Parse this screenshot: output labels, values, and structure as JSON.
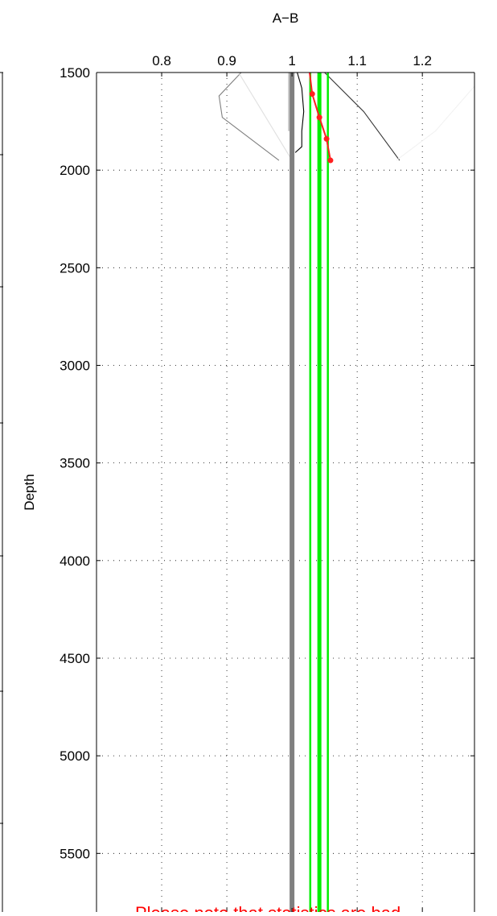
{
  "chart_data": {
    "type": "line",
    "title": "A−B",
    "ylabel": "Depth",
    "xlabel": "",
    "xlim": [
      0.7,
      1.28
    ],
    "ylim": [
      1500,
      5800
    ],
    "y_reversed": true,
    "x_ticks": [
      "0.8",
      "0.9",
      "1",
      "1.1",
      "1.2"
    ],
    "x_tick_values": [
      0.8,
      0.9,
      1.0,
      1.1,
      1.2
    ],
    "y_ticks": [
      "1500",
      "2000",
      "2500",
      "3000",
      "3500",
      "4000",
      "4500",
      "5000",
      "5500"
    ],
    "y_tick_values": [
      1500,
      2000,
      2500,
      3000,
      3500,
      4000,
      4500,
      5000,
      5500
    ],
    "grid": "dotted",
    "reference_lines": [
      {
        "x": 1.0,
        "color": "#808080"
      },
      {
        "x": 1.028,
        "color": "#00ee00"
      },
      {
        "x": 1.042,
        "color": "#00ee00"
      },
      {
        "x": 1.055,
        "color": "#00ee00"
      }
    ],
    "series": [
      {
        "color": "#ff2020",
        "markers": true,
        "x": [
          1.027,
          1.031,
          1.042,
          1.053,
          1.059
        ],
        "y": [
          1500,
          1610,
          1730,
          1840,
          1950
        ]
      },
      {
        "color": "#000000",
        "markers": false,
        "x": [
          1.008,
          1.015,
          1.018,
          1.015,
          1.015,
          1.005
        ],
        "y": [
          1500,
          1580,
          1700,
          1800,
          1880,
          1910
        ]
      },
      {
        "color": "#808080",
        "markers": false,
        "x": [
          0.922,
          0.888,
          0.893,
          0.98
        ],
        "y": [
          1500,
          1620,
          1730,
          1950
        ]
      },
      {
        "color": "#333333",
        "markers": false,
        "x": [
          1.05,
          1.11,
          1.165
        ],
        "y": [
          1500,
          1700,
          1950
        ]
      },
      {
        "color": "#e0e0e0",
        "markers": false,
        "x": [
          0.918,
          1.0
        ],
        "y": [
          1500,
          1950
        ]
      },
      {
        "color": "#f2f2f2",
        "markers": false,
        "x": [
          1.16,
          1.22,
          1.28
        ],
        "y": [
          1950,
          1800,
          1570
        ]
      },
      {
        "color": "#a0a0a0",
        "markers": false,
        "x": [
          0.995,
          0.995
        ],
        "y": [
          1500,
          1800
        ]
      }
    ],
    "note": {
      "text": "Please note that statistics are bad",
      "color": "#ff0000"
    }
  }
}
